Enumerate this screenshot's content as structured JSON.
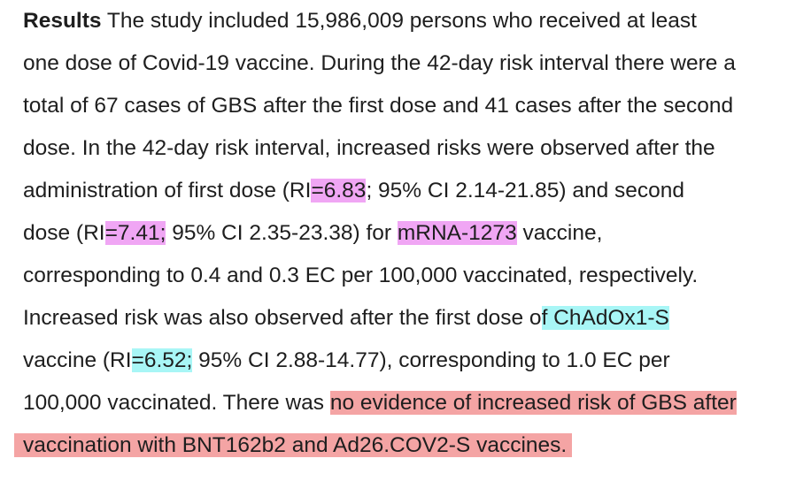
{
  "paragraph": {
    "heading": "Results",
    "lines": [
      " The study included 15,986,009 persons who received at least",
      "one dose of Covid-19 vaccine. During the 42-day risk interval there were a",
      "total of 67 cases of GBS after the first dose and 41 cases after the second",
      "dose. In the 42-day risk interval, increased risks were observed after the"
    ],
    "line5": {
      "before": "administration of first dose (RI",
      "highlight": "=6.83",
      "after": "; 95% CI 2.14-21.85) and second"
    },
    "line6": {
      "before": "dose (RI",
      "highlight1": "=7.41;",
      "middle": " 95% CI 2.35-23.38) for ",
      "highlight2": "mRNA-1273",
      "after": " vaccine,"
    },
    "line7": "corresponding to 0.4 and 0.3 EC per 100,000 vaccinated, respectively.",
    "line8": {
      "before": "Increased risk was also observed after the first dose o",
      "highlight": "f ChAdOx1-S"
    },
    "line9": {
      "before": "vaccine (RI",
      "highlight": "=6.52;",
      "after": " 95% CI 2.88-14.77), corresponding to 1.0 EC per"
    },
    "line10": {
      "before": "100,000 vaccinated. There was ",
      "highlight": "no evidence of increased risk of GBS after"
    },
    "line11": {
      "highlight": "vaccination with BNT162b2 and Ad26.COV2-S vaccines."
    }
  },
  "colors": {
    "text": "#1e1e1e",
    "highlight_magenta": "#f0a6f4",
    "highlight_cyan": "#a8f6f6",
    "highlight_red": "#f4a4a4"
  }
}
